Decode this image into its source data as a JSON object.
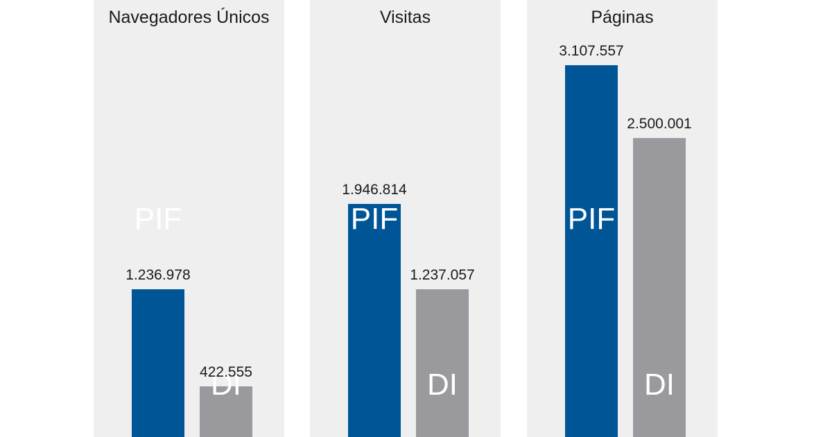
{
  "chart_data": {
    "type": "bar",
    "series_labels": [
      "PIF",
      "DI"
    ],
    "colors": {
      "PIF": "#005597",
      "DI": "#9a999e",
      "panel_bg": "#efefef"
    },
    "ylim": [
      0,
      3300000
    ],
    "panels": [
      {
        "title": "Navegadores Únicos",
        "values": [
          1236978,
          422555
        ],
        "value_labels": [
          "1.236.978",
          "422.555"
        ]
      },
      {
        "title": "Visitas",
        "values": [
          1946814,
          1237057
        ],
        "value_labels": [
          "1.946.814",
          "1.237.057"
        ]
      },
      {
        "title": "Páginas",
        "values": [
          3107557,
          2500001
        ],
        "value_labels": [
          "3.107.557",
          "2.500.001"
        ]
      }
    ]
  }
}
